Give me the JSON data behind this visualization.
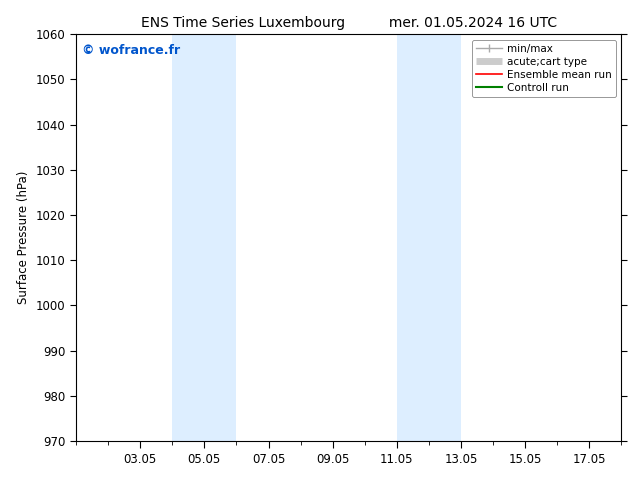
{
  "title_left": "ENS Time Series Luxembourg",
  "title_right": "mer. 01.05.2024 16 UTC",
  "ylabel": "Surface Pressure (hPa)",
  "ylim": [
    970,
    1060
  ],
  "yticks": [
    970,
    980,
    990,
    1000,
    1010,
    1020,
    1030,
    1040,
    1050,
    1060
  ],
  "xlim": [
    1.0,
    18.0
  ],
  "xtick_labels": [
    "03.05",
    "05.05",
    "07.05",
    "09.05",
    "11.05",
    "13.05",
    "15.05",
    "17.05"
  ],
  "xtick_positions": [
    3,
    5,
    7,
    9,
    11,
    13,
    15,
    17
  ],
  "shaded_bands": [
    {
      "xmin": 4.0,
      "xmax": 6.0,
      "color": "#ddeeff"
    },
    {
      "xmin": 11.0,
      "xmax": 13.0,
      "color": "#ddeeff"
    }
  ],
  "watermark": "© wofrance.fr",
  "watermark_color": "#0055cc",
  "background_color": "#ffffff",
  "plot_bg_color": "#ffffff",
  "legend_entries": [
    {
      "label": "min/max",
      "color": "#aaaaaa",
      "lw": 1.0,
      "style": "minmax"
    },
    {
      "label": "acute;cart type",
      "color": "#cccccc",
      "lw": 5,
      "style": "thick"
    },
    {
      "label": "Ensemble mean run",
      "color": "#ff0000",
      "lw": 1.2,
      "style": "line"
    },
    {
      "label": "Controll run",
      "color": "#008000",
      "lw": 1.5,
      "style": "line"
    }
  ],
  "figsize": [
    6.34,
    4.9
  ],
  "dpi": 100
}
